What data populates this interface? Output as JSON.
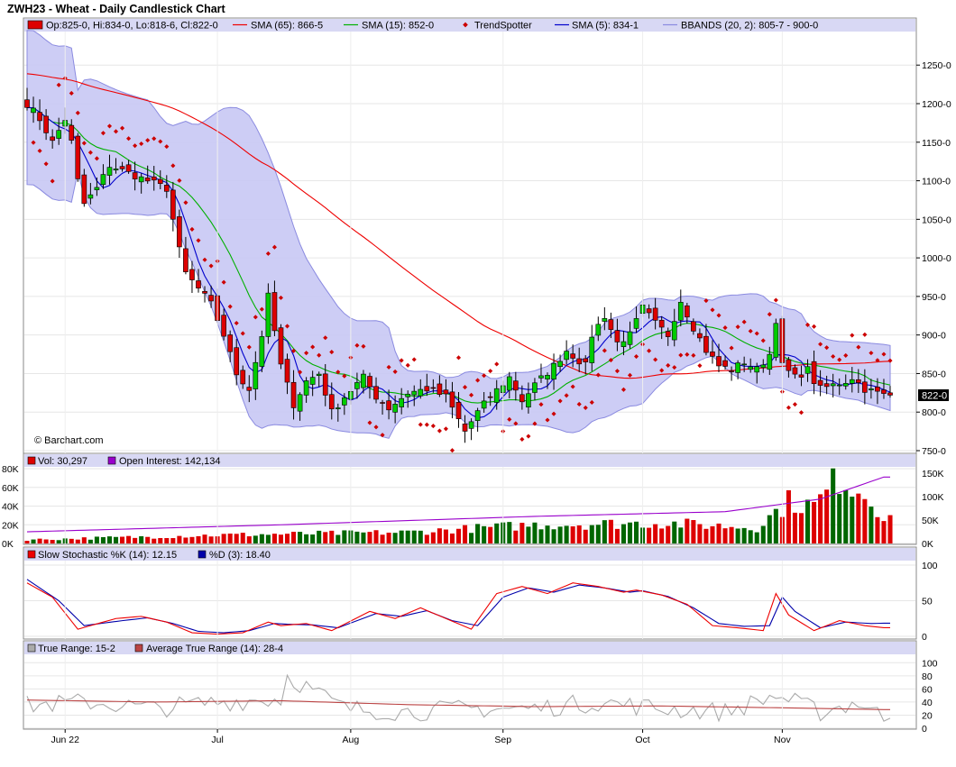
{
  "title": "ZWH23 - Wheat - Daily Candlestick Chart",
  "colors": {
    "up": "#00cc00",
    "down": "#dd0000",
    "sma65": "#ee0000",
    "sma15": "#00b000",
    "sma5": "#0000cc",
    "bband_fill": "#c8c8f4",
    "bband_line": "#8a8ae0",
    "trend": "#cc0000",
    "legend_bg": "#d8d8f4",
    "oi": "#9900cc",
    "stoch_k": "#ee0000",
    "stoch_d": "#0000aa",
    "tr": "#aaaaaa",
    "atr": "#bb4444"
  },
  "price_legend": {
    "ohlc": "Op:825-0, Hi:834-0, Lo:818-6, Cl:822-0",
    "sma65": "SMA (65): 866-5",
    "sma15": "SMA (15): 852-0",
    "trend": "TrendSpotter",
    "sma5": "SMA (5): 834-1",
    "bbands": "BBANDS (20, 2): 805-7 - 900-0"
  },
  "last_price_tag": "822-0",
  "watermark": "© Barchart.com",
  "volume_legend": {
    "vol": "Vol: 30,297",
    "oi": "Open Interest: 142,134"
  },
  "stoch_legend": {
    "k": "Slow Stochastic %K (14): 12.15",
    "d": "%D (3): 18.40"
  },
  "tr_legend": {
    "tr": "True Range: 15-2",
    "atr": "Average True Range (14): 28-4"
  },
  "chart_data": [
    {
      "type": "candlestick",
      "panel": "price",
      "ylim": [
        750,
        1290
      ],
      "yticks": [
        "1250-0",
        "1200-0",
        "1150-0",
        "1100-0",
        "1050-0",
        "1000-0",
        "950-0",
        "900-0",
        "850-0",
        "800-0",
        "750-0"
      ],
      "ytick_values": [
        1250,
        1200,
        1150,
        1100,
        1050,
        1000,
        950,
        900,
        850,
        800,
        750
      ],
      "x_labels": [
        "Jun 22",
        "Jul",
        "Aug",
        "Sep",
        "Oct",
        "Nov"
      ],
      "x_label_bar_index": [
        6,
        30,
        51,
        75,
        97,
        119
      ],
      "bar_count": 137,
      "anchors": [
        {
          "i": 0,
          "c": 1200
        },
        {
          "i": 2,
          "c": 1180
        },
        {
          "i": 4,
          "c": 1150
        },
        {
          "i": 6,
          "c": 1180
        },
        {
          "i": 7,
          "c": 1150
        },
        {
          "i": 8,
          "c": 1100
        },
        {
          "i": 9,
          "c": 1070
        },
        {
          "i": 11,
          "c": 1090
        },
        {
          "i": 13,
          "c": 1120
        },
        {
          "i": 16,
          "c": 1110
        },
        {
          "i": 19,
          "c": 1100
        },
        {
          "i": 22,
          "c": 1090
        },
        {
          "i": 23,
          "c": 1050
        },
        {
          "i": 24,
          "c": 1010
        },
        {
          "i": 25,
          "c": 980
        },
        {
          "i": 27,
          "c": 960
        },
        {
          "i": 29,
          "c": 940
        },
        {
          "i": 31,
          "c": 900
        },
        {
          "i": 33,
          "c": 850
        },
        {
          "i": 35,
          "c": 830
        },
        {
          "i": 37,
          "c": 900
        },
        {
          "i": 38,
          "c": 950
        },
        {
          "i": 40,
          "c": 860
        },
        {
          "i": 42,
          "c": 810
        },
        {
          "i": 44,
          "c": 840
        },
        {
          "i": 46,
          "c": 850
        },
        {
          "i": 48,
          "c": 800
        },
        {
          "i": 50,
          "c": 820
        },
        {
          "i": 53,
          "c": 845
        },
        {
          "i": 55,
          "c": 820
        },
        {
          "i": 57,
          "c": 805
        },
        {
          "i": 60,
          "c": 825
        },
        {
          "i": 63,
          "c": 830
        },
        {
          "i": 66,
          "c": 820
        },
        {
          "i": 68,
          "c": 790
        },
        {
          "i": 69,
          "c": 775
        },
        {
          "i": 71,
          "c": 800
        },
        {
          "i": 73,
          "c": 820
        },
        {
          "i": 76,
          "c": 845
        },
        {
          "i": 78,
          "c": 815
        },
        {
          "i": 80,
          "c": 835
        },
        {
          "i": 83,
          "c": 860
        },
        {
          "i": 85,
          "c": 880
        },
        {
          "i": 88,
          "c": 860
        },
        {
          "i": 89,
          "c": 900
        },
        {
          "i": 91,
          "c": 925
        },
        {
          "i": 93,
          "c": 890
        },
        {
          "i": 95,
          "c": 900
        },
        {
          "i": 97,
          "c": 935
        },
        {
          "i": 99,
          "c": 915
        },
        {
          "i": 101,
          "c": 900
        },
        {
          "i": 103,
          "c": 945
        },
        {
          "i": 105,
          "c": 910
        },
        {
          "i": 107,
          "c": 880
        },
        {
          "i": 109,
          "c": 860
        },
        {
          "i": 111,
          "c": 855
        },
        {
          "i": 113,
          "c": 865
        },
        {
          "i": 115,
          "c": 855
        },
        {
          "i": 117,
          "c": 875
        },
        {
          "i": 118,
          "c": 920
        },
        {
          "i": 119,
          "c": 860
        },
        {
          "i": 121,
          "c": 845
        },
        {
          "i": 123,
          "c": 855
        },
        {
          "i": 124,
          "c": 840
        },
        {
          "i": 125,
          "c": 830
        },
        {
          "i": 127,
          "c": 835
        },
        {
          "i": 129,
          "c": 840
        },
        {
          "i": 130,
          "c": 845
        },
        {
          "i": 132,
          "c": 830
        },
        {
          "i": 134,
          "c": 825
        },
        {
          "i": 135,
          "c": 822
        }
      ],
      "last_ohlc": {
        "open": 825.0,
        "high": 834.0,
        "low": 818.75,
        "close": 822.0
      },
      "series": [
        {
          "name": "SMA (65)",
          "last": 866.625
        },
        {
          "name": "SMA (15)",
          "last": 852.0
        },
        {
          "name": "SMA (5)",
          "last": 834.125
        },
        {
          "name": "BBANDS (20, 2)",
          "lower_last": 805.875,
          "upper_last": 900.0
        },
        {
          "name": "TrendSpotter"
        }
      ]
    },
    {
      "type": "bar",
      "panel": "volume",
      "ylim": [
        0,
        80000
      ],
      "yticks_left": [
        "80K",
        "60K",
        "40K",
        "20K",
        "0K"
      ],
      "yticks_left_values": [
        80000,
        60000,
        40000,
        20000,
        0
      ],
      "yticks_right": [
        "150K",
        "100K",
        "50K",
        "0K"
      ],
      "yticks_right_values": [
        150000,
        100000,
        50000,
        0
      ],
      "last_volume": 30297,
      "volume_anchors": [
        {
          "i": 0,
          "v": 4000
        },
        {
          "i": 30,
          "v": 9000
        },
        {
          "i": 60,
          "v": 12000
        },
        {
          "i": 80,
          "v": 20000
        },
        {
          "i": 100,
          "v": 22000
        },
        {
          "i": 115,
          "v": 17000
        },
        {
          "i": 120,
          "v": 45000
        },
        {
          "i": 124,
          "v": 40000
        },
        {
          "i": 126,
          "v": 55000
        },
        {
          "i": 128,
          "v": 72000
        },
        {
          "i": 131,
          "v": 58000
        },
        {
          "i": 133,
          "v": 48000
        },
        {
          "i": 135,
          "v": 30297
        }
      ],
      "open_interest": {
        "name": "Open Interest",
        "last": 142134,
        "anchors": [
          {
            "i": 0,
            "v": 25000
          },
          {
            "i": 40,
            "v": 40000
          },
          {
            "i": 80,
            "v": 58000
          },
          {
            "i": 110,
            "v": 68000
          },
          {
            "i": 125,
            "v": 95000
          },
          {
            "i": 135,
            "v": 142134
          }
        ]
      }
    },
    {
      "type": "line",
      "panel": "stochastic",
      "ylim": [
        0,
        100
      ],
      "yticks": [
        "100",
        "50",
        "0"
      ],
      "ytick_values": [
        100,
        50,
        0
      ],
      "series": [
        {
          "name": "Slow Stochastic %K (14)",
          "last": 12.15,
          "anchors": [
            {
              "i": 0,
              "v": 75
            },
            {
              "i": 4,
              "v": 55
            },
            {
              "i": 8,
              "v": 10
            },
            {
              "i": 14,
              "v": 25
            },
            {
              "i": 18,
              "v": 28
            },
            {
              "i": 22,
              "v": 20
            },
            {
              "i": 26,
              "v": 5
            },
            {
              "i": 30,
              "v": 3
            },
            {
              "i": 34,
              "v": 5
            },
            {
              "i": 38,
              "v": 20
            },
            {
              "i": 40,
              "v": 15
            },
            {
              "i": 44,
              "v": 18
            },
            {
              "i": 48,
              "v": 8
            },
            {
              "i": 54,
              "v": 35
            },
            {
              "i": 58,
              "v": 25
            },
            {
              "i": 62,
              "v": 40
            },
            {
              "i": 66,
              "v": 25
            },
            {
              "i": 70,
              "v": 10
            },
            {
              "i": 74,
              "v": 60
            },
            {
              "i": 78,
              "v": 70
            },
            {
              "i": 82,
              "v": 60
            },
            {
              "i": 86,
              "v": 75
            },
            {
              "i": 90,
              "v": 70
            },
            {
              "i": 94,
              "v": 62
            },
            {
              "i": 96,
              "v": 65
            },
            {
              "i": 100,
              "v": 58
            },
            {
              "i": 104,
              "v": 45
            },
            {
              "i": 108,
              "v": 15
            },
            {
              "i": 112,
              "v": 12
            },
            {
              "i": 116,
              "v": 8
            },
            {
              "i": 118,
              "v": 60
            },
            {
              "i": 120,
              "v": 30
            },
            {
              "i": 124,
              "v": 8
            },
            {
              "i": 128,
              "v": 22
            },
            {
              "i": 132,
              "v": 15
            },
            {
              "i": 135,
              "v": 12.15
            }
          ]
        },
        {
          "name": "%D (3)",
          "last": 18.4,
          "anchors": [
            {
              "i": 0,
              "v": 80
            },
            {
              "i": 5,
              "v": 50
            },
            {
              "i": 9,
              "v": 15
            },
            {
              "i": 15,
              "v": 22
            },
            {
              "i": 19,
              "v": 26
            },
            {
              "i": 23,
              "v": 18
            },
            {
              "i": 27,
              "v": 7
            },
            {
              "i": 31,
              "v": 5
            },
            {
              "i": 35,
              "v": 8
            },
            {
              "i": 39,
              "v": 18
            },
            {
              "i": 41,
              "v": 17
            },
            {
              "i": 45,
              "v": 16
            },
            {
              "i": 49,
              "v": 12
            },
            {
              "i": 55,
              "v": 32
            },
            {
              "i": 59,
              "v": 28
            },
            {
              "i": 63,
              "v": 36
            },
            {
              "i": 67,
              "v": 22
            },
            {
              "i": 71,
              "v": 15
            },
            {
              "i": 75,
              "v": 55
            },
            {
              "i": 79,
              "v": 68
            },
            {
              "i": 83,
              "v": 62
            },
            {
              "i": 87,
              "v": 72
            },
            {
              "i": 91,
              "v": 68
            },
            {
              "i": 95,
              "v": 62
            },
            {
              "i": 97,
              "v": 64
            },
            {
              "i": 101,
              "v": 56
            },
            {
              "i": 105,
              "v": 40
            },
            {
              "i": 109,
              "v": 18
            },
            {
              "i": 113,
              "v": 14
            },
            {
              "i": 117,
              "v": 15
            },
            {
              "i": 119,
              "v": 55
            },
            {
              "i": 121,
              "v": 35
            },
            {
              "i": 125,
              "v": 12
            },
            {
              "i": 129,
              "v": 20
            },
            {
              "i": 133,
              "v": 18
            },
            {
              "i": 135,
              "v": 18.4
            }
          ]
        }
      ]
    },
    {
      "type": "line",
      "panel": "true_range",
      "ylim": [
        0,
        110
      ],
      "yticks": [
        "100",
        "80",
        "60",
        "40",
        "20",
        "0"
      ],
      "ytick_values": [
        100,
        80,
        60,
        40,
        20,
        0
      ],
      "series": [
        {
          "name": "True Range",
          "last": 15.25,
          "anchors": [
            {
              "i": 0,
              "v": 35
            },
            {
              "i": 10,
              "v": 40
            },
            {
              "i": 20,
              "v": 30
            },
            {
              "i": 30,
              "v": 40
            },
            {
              "i": 40,
              "v": 45
            },
            {
              "i": 41,
              "v": 80
            },
            {
              "i": 50,
              "v": 30
            },
            {
              "i": 60,
              "v": 25
            },
            {
              "i": 70,
              "v": 30
            },
            {
              "i": 80,
              "v": 30
            },
            {
              "i": 90,
              "v": 40
            },
            {
              "i": 100,
              "v": 30
            },
            {
              "i": 110,
              "v": 25
            },
            {
              "i": 118,
              "v": 50
            },
            {
              "i": 125,
              "v": 25
            },
            {
              "i": 131,
              "v": 40
            },
            {
              "i": 135,
              "v": 15.25
            }
          ]
        },
        {
          "name": "Average True Range (14)",
          "last": 28.5,
          "anchors": [
            {
              "i": 0,
              "v": 43
            },
            {
              "i": 20,
              "v": 40
            },
            {
              "i": 40,
              "v": 42
            },
            {
              "i": 60,
              "v": 36
            },
            {
              "i": 80,
              "v": 33
            },
            {
              "i": 100,
              "v": 34
            },
            {
              "i": 120,
              "v": 31
            },
            {
              "i": 135,
              "v": 28.5
            }
          ]
        }
      ]
    }
  ]
}
